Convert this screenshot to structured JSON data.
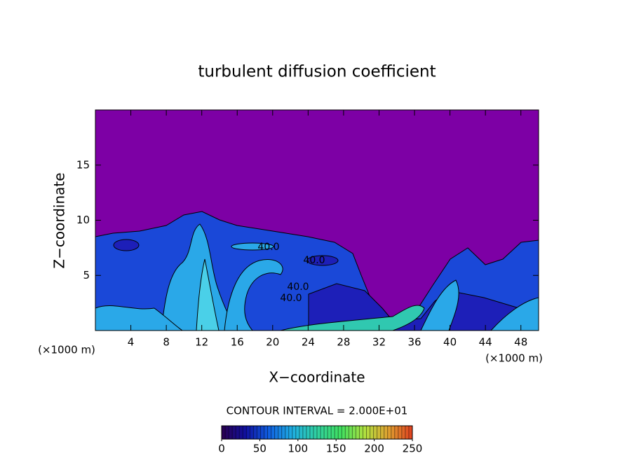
{
  "chart_data": {
    "type": "contour",
    "title": "turbulent diffusion coefficient",
    "xlabel": "X−coordinate",
    "ylabel": "Z−coordinate",
    "x_unit": "(×1000 m)",
    "xlim": [
      0,
      50
    ],
    "xticks": [
      4,
      8,
      12,
      16,
      20,
      24,
      28,
      32,
      36,
      40,
      44,
      48
    ],
    "ylim": [
      0,
      20
    ],
    "yticks": [
      5,
      10,
      15
    ],
    "contour_labels": [
      "40.0",
      "40.0",
      "40.0",
      "40.0"
    ],
    "contour_interval_text": "CONTOUR INTERVAL = 2.000E+01",
    "colorbar": {
      "lim": [
        0,
        250
      ],
      "ticks": [
        0,
        50,
        100,
        150,
        200,
        250
      ],
      "colors": [
        "#2a0050",
        "#1010a0",
        "#1060e0",
        "#20b0e0",
        "#30d0a0",
        "#40e060",
        "#b0e040",
        "#e0a030",
        "#e04020"
      ]
    }
  }
}
